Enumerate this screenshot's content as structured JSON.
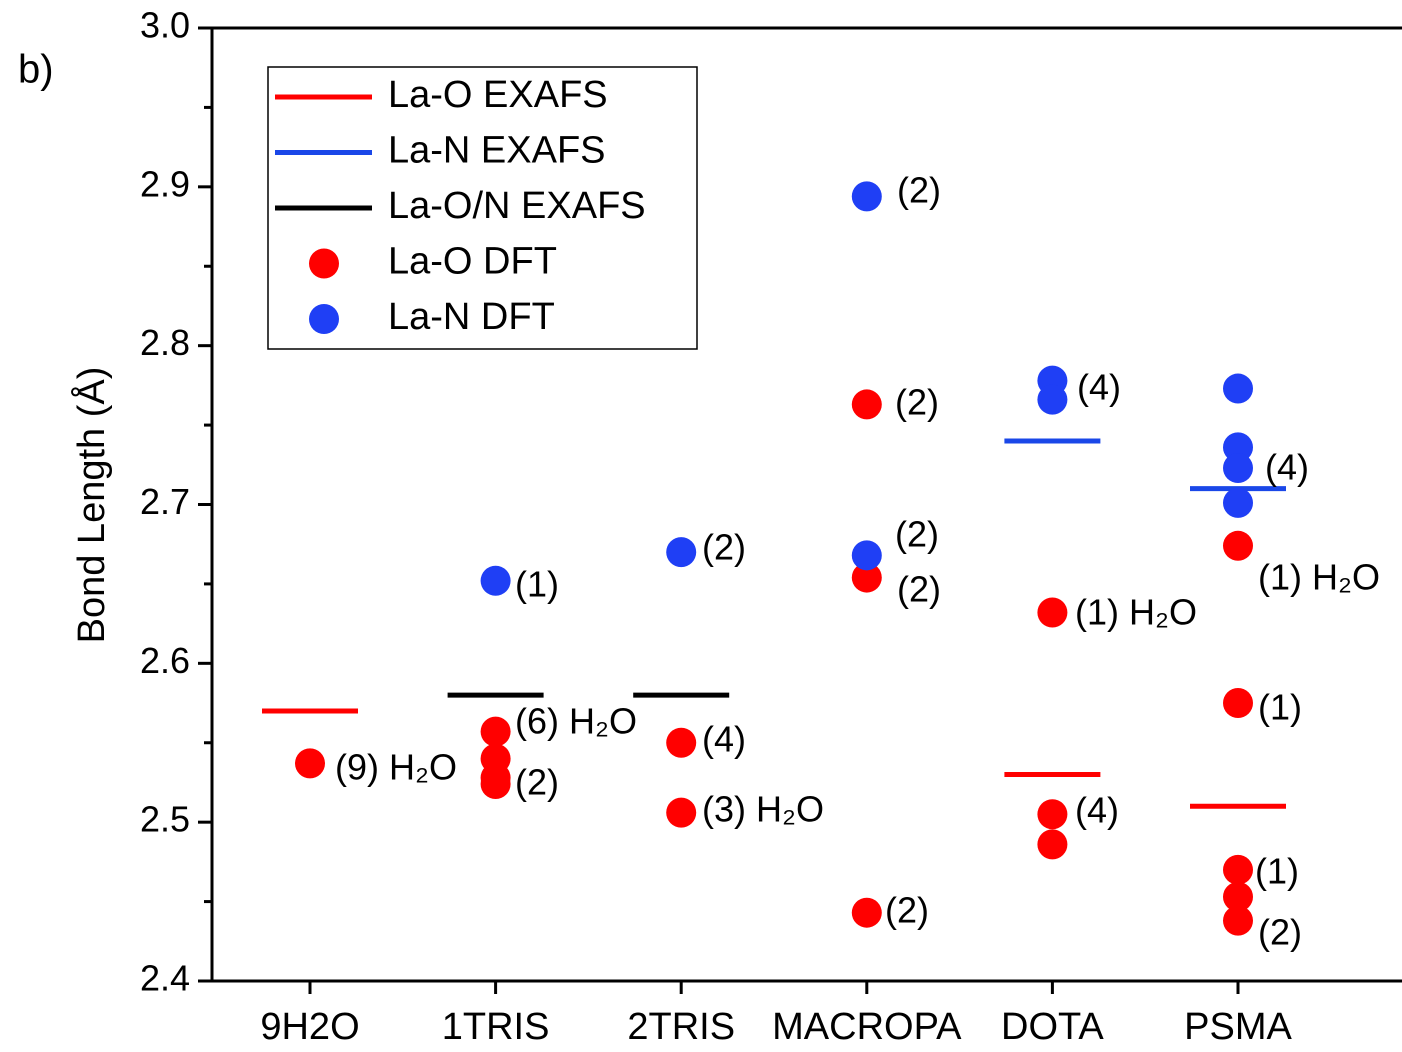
{
  "chart_data": {
    "type": "scatter",
    "panel_label": "b)",
    "y_label": "Bond Length (Å)",
    "categories": [
      "9H2O",
      "1TRIS",
      "2TRIS",
      "MACROPA",
      "DOTA",
      "PSMA"
    ],
    "ylim": [
      2.4,
      3.0
    ],
    "yticks": [
      2.4,
      2.5,
      2.6,
      2.7,
      2.8,
      2.9,
      {
        "value": 3.0,
        "label": "3.0"
      }
    ],
    "yminorticks": [
      2.45,
      2.55,
      2.65,
      2.75,
      2.85,
      2.95
    ],
    "legend": "upper left",
    "series": [
      {
        "name": "La-O EXAFS",
        "marker": "line",
        "color": "#ff0000",
        "values": [
          2.57,
          null,
          null,
          null,
          2.53,
          2.51
        ]
      },
      {
        "name": "La-N EXAFS",
        "marker": "line",
        "color": "#1a47e8",
        "values": [
          null,
          null,
          null,
          null,
          2.74,
          2.71
        ]
      },
      {
        "name": "La-O/N EXAFS",
        "marker": "line",
        "color": "#000000",
        "values": [
          null,
          2.58,
          2.58,
          null,
          null,
          null
        ]
      },
      {
        "name": "La-O DFT",
        "marker": "circle",
        "color": "#ff0000",
        "x": [
          "9H2O",
          "1TRIS",
          "1TRIS",
          "1TRIS",
          "1TRIS",
          "2TRIS",
          "2TRIS",
          "MACROPA",
          "MACROPA",
          "MACROPA",
          "DOTA",
          "DOTA",
          "DOTA",
          "PSMA",
          "PSMA",
          "PSMA",
          "PSMA",
          "PSMA"
        ],
        "values": [
          2.537,
          2.557,
          2.54,
          2.528,
          2.524,
          2.55,
          2.506,
          2.763,
          2.654,
          2.443,
          2.632,
          2.505,
          2.486,
          2.674,
          2.575,
          2.47,
          2.453,
          2.438
        ]
      },
      {
        "name": "La-N DFT",
        "marker": "circle",
        "color": "#1f3ff5",
        "x": [
          "1TRIS",
          "2TRIS",
          "MACROPA",
          "MACROPA",
          "DOTA",
          "DOTA",
          "PSMA",
          "PSMA",
          "PSMA",
          "PSMA"
        ],
        "values": [
          2.652,
          2.67,
          2.894,
          2.668,
          2.778,
          2.766,
          2.773,
          2.736,
          2.723,
          2.701
        ]
      }
    ],
    "annotations": [
      "(9) H₂O",
      "(6) H₂O",
      "(2)",
      "(1)",
      "(2)",
      "(4)",
      "(3) H₂O",
      "(2)",
      "(2)",
      "(2)",
      "(2)",
      "(2)",
      "(4)",
      "(1) H₂O",
      "(4)",
      "(4)",
      "(1) H₂O",
      "(1)",
      "(1)",
      "(2)"
    ]
  }
}
